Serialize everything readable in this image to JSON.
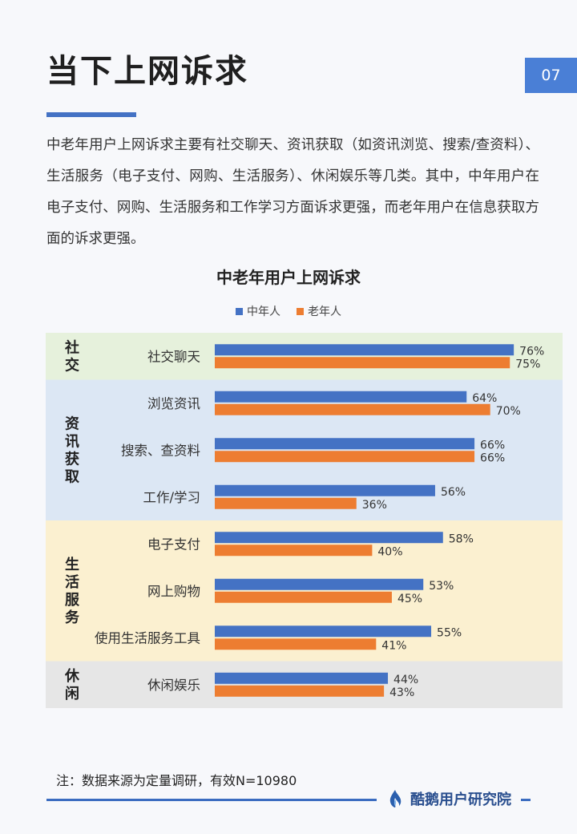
{
  "header": {
    "title": "当下上网诉求",
    "page_number": "07"
  },
  "intro": "中老年用户上网诉求主要有社交聊天、资讯获取（如资讯浏览、搜索/查资料）、生活服务（电子支付、网购、生活服务）、休闲娱乐等几类。其中，中年用户在电子支付、网购、生活服务和工作学习方面诉求更强，而老年用户在信息获取方面的诉求更强。",
  "chart_data": {
    "type": "bar",
    "orientation": "horizontal",
    "title": "中老年用户上网诉求",
    "legend_position": "top-center",
    "value_format": "percent",
    "xlim": [
      0,
      100
    ],
    "groups": [
      {
        "name": "社交",
        "color": "#e6f1dc",
        "categories": [
          "社交聊天"
        ]
      },
      {
        "name": "资讯获取",
        "color": "#dce7f4",
        "categories": [
          "浏览资讯",
          "搜索、查资料",
          "工作/学习"
        ]
      },
      {
        "name": "生活服务",
        "color": "#fbf0d0",
        "categories": [
          "电子支付",
          "网上购物",
          "使用生活服务工具"
        ]
      },
      {
        "name": "休闲",
        "color": "#e6e6e6",
        "categories": [
          "休闲娱乐"
        ]
      }
    ],
    "categories": [
      "社交聊天",
      "浏览资讯",
      "搜索、查资料",
      "工作/学习",
      "电子支付",
      "网上购物",
      "使用生活服务工具",
      "休闲娱乐"
    ],
    "series": [
      {
        "name": "中年人",
        "color": "#4472c4",
        "values": [
          76,
          64,
          66,
          56,
          58,
          53,
          55,
          44
        ]
      },
      {
        "name": "老年人",
        "color": "#ed7d31",
        "values": [
          75,
          70,
          66,
          36,
          40,
          45,
          41,
          43
        ]
      }
    ]
  },
  "note": "注：数据来源为定量调研，有效N=10980",
  "brand": {
    "name": "酷鹅用户研究院",
    "icon": "flame-logo-icon"
  }
}
